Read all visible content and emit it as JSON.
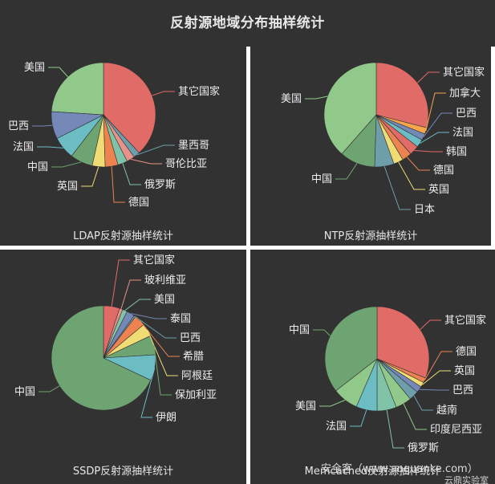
{
  "title": "反射源地域分布抽样统计",
  "watermarks": [
    "安全客（www.anquanke.com）",
    "云鼎实验室"
  ],
  "colors": {
    "background": "#323232",
    "red": "#e06b67",
    "green_light": "#90c98a",
    "green_dark": "#6ea471",
    "blue": "#7489b8",
    "teal": "#6cbcc4",
    "yellow": "#f0dc74",
    "orange": "#ec8350",
    "slate": "#6f9eab",
    "salmon": "#e8938a",
    "mint": "#7fc4a8",
    "amber": "#f4a64a"
  },
  "chart_data": [
    {
      "type": "pie",
      "title": "LDAP反射源抽样统计",
      "categories": [
        "其它国家",
        "墨西哥",
        "哥伦比亚",
        "俄罗斯",
        "德国",
        "英国",
        "中国",
        "法国",
        "巴西",
        "美国"
      ],
      "values": [
        38,
        2,
        2.5,
        3,
        4,
        4,
        7,
        7,
        8.5,
        24
      ],
      "unit": "% (estimated)",
      "colors": [
        "#e06b67",
        "#6f9eab",
        "#e8938a",
        "#7fc4a8",
        "#ec8350",
        "#f0dc74",
        "#6ea471",
        "#6cbcc4",
        "#7489b8",
        "#90c98a"
      ],
      "legend": "none (outside labels with leader lines)"
    },
    {
      "type": "pie",
      "title": "NTP反射源抽样统计",
      "categories": [
        "其它国家",
        "加拿大",
        "巴西",
        "法国",
        "韩国",
        "德国",
        "英国",
        "日本",
        "中国",
        "美国"
      ],
      "values": [
        29,
        2,
        2,
        2.5,
        3,
        3,
        3,
        6,
        11,
        38.5
      ],
      "unit": "% (estimated)",
      "colors": [
        "#e06b67",
        "#f4a64a",
        "#7489b8",
        "#6cbcc4",
        "#e06b67",
        "#ec8350",
        "#f0dc74",
        "#6f9eab",
        "#6ea471",
        "#90c98a"
      ],
      "legend": "none (outside labels with leader lines)"
    },
    {
      "type": "pie",
      "title": "SSDP反射源抽样统计",
      "categories": [
        "其它国家",
        "玻利维亚",
        "美国",
        "泰国",
        "巴西",
        "希腊",
        "阿根廷",
        "保加利亚",
        "伊朗",
        "中国"
      ],
      "values": [
        5,
        1,
        1.5,
        2.5,
        0.5,
        3.5,
        4,
        6,
        8,
        68
      ],
      "unit": "% (estimated)",
      "colors": [
        "#e06b67",
        "#e8938a",
        "#7fc4a8",
        "#7489b8",
        "#6f9eab",
        "#ec8350",
        "#f0dc74",
        "#6ea471",
        "#6cbcc4",
        "#6ea471"
      ],
      "legend": "none (outside labels with leader lines)"
    },
    {
      "type": "pie",
      "title": "Memcached反射源抽样统计",
      "categories": [
        "其它国家",
        "德国",
        "英国",
        "巴西",
        "越南",
        "印度尼西亚",
        "俄罗斯",
        "法国",
        "美国",
        "中国"
      ],
      "values": [
        31,
        1.5,
        1.5,
        2,
        3,
        5,
        6,
        6.5,
        8,
        35.5
      ],
      "unit": "% (estimated)",
      "colors": [
        "#e06b67",
        "#ec8350",
        "#f0dc74",
        "#7489b8",
        "#6f9eab",
        "#90c98a",
        "#7fc4a8",
        "#6cbcc4",
        "#90c98a",
        "#6ea471"
      ],
      "legend": "none (outside labels with leader lines)"
    }
  ]
}
